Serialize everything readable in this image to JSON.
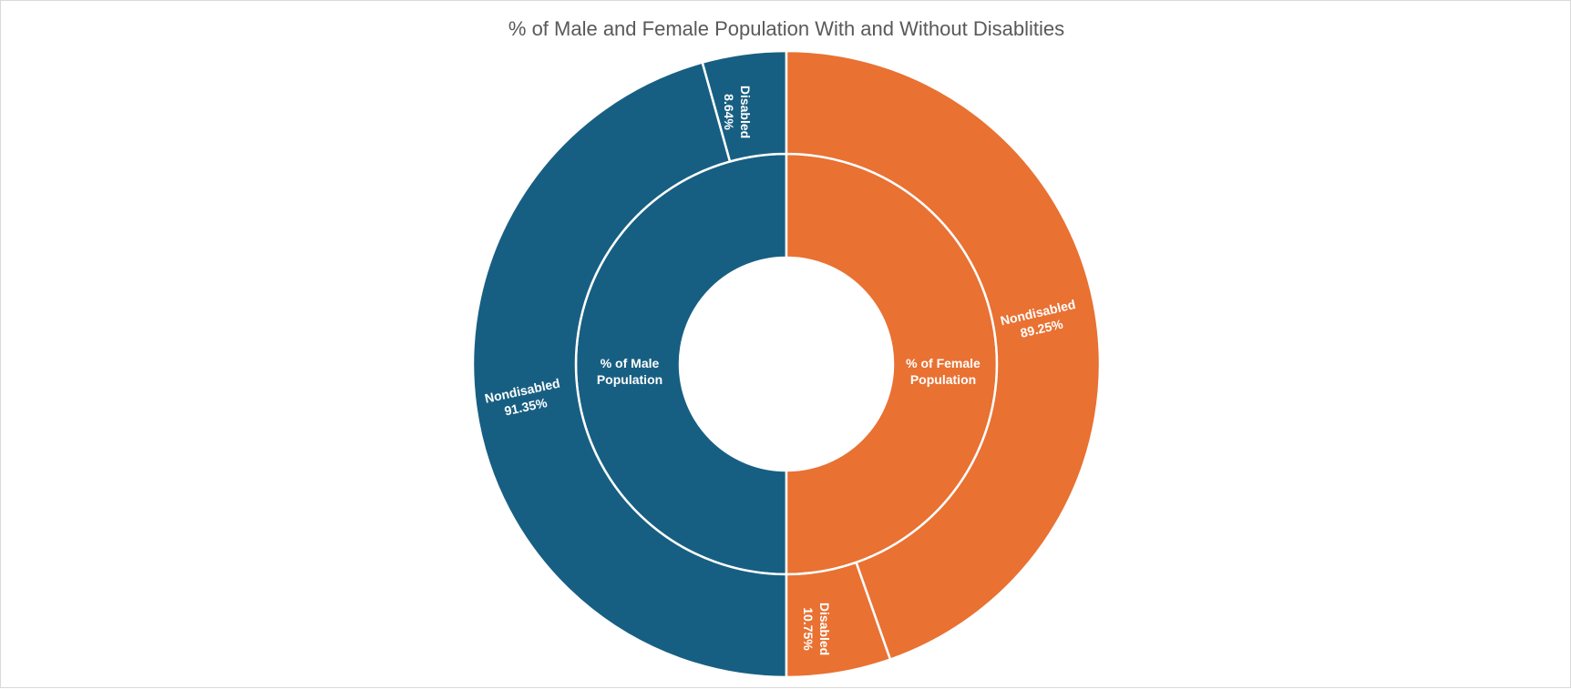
{
  "chart_data": {
    "type": "sunburst",
    "title": "% of Male and Female Population With and Without Disablities",
    "colors": {
      "male": "#175F82",
      "female": "#E97132",
      "separator": "#ffffff",
      "title": "#595959"
    },
    "groups": [
      {
        "name": "% of Male Population",
        "line1": "% of Male",
        "line2": "Population",
        "share": 50,
        "children": [
          {
            "name": "Nondisabled",
            "value": 91.35,
            "label": "91.35%"
          },
          {
            "name": "Disabled",
            "value": 8.64,
            "label": "8.64%"
          }
        ]
      },
      {
        "name": "% of Female Population",
        "line1": "% of Female",
        "line2": "Population",
        "share": 50,
        "children": [
          {
            "name": "Nondisabled",
            "value": 89.25,
            "label": "89.25%"
          },
          {
            "name": "Disabled",
            "value": 10.75,
            "label": "10.75%"
          }
        ]
      }
    ]
  }
}
